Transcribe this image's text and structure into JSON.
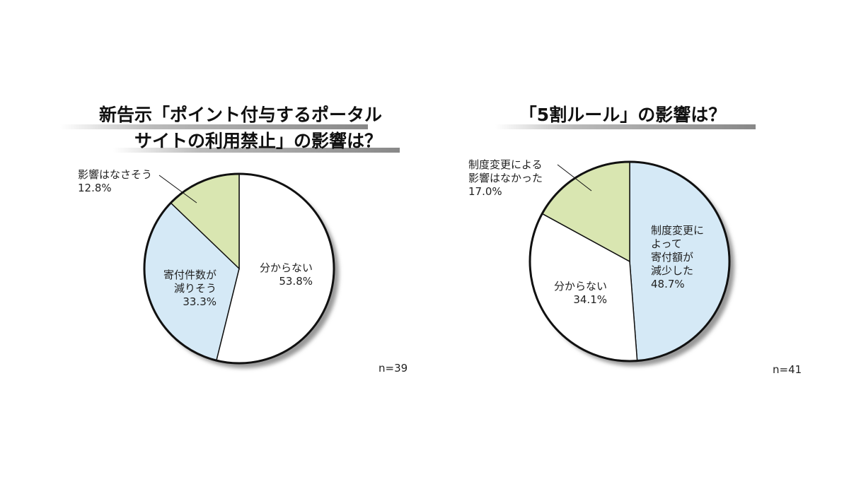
{
  "chart_data": [
    {
      "type": "pie",
      "title": "新告示「ポイント付与するポータル\nサイトの利用禁止」の影響は？",
      "categories": [
        "分からない",
        "寄付件数が\n減りそう",
        "影響はなさそう"
      ],
      "values": [
        53.8,
        33.3,
        12.8
      ],
      "value_labels": [
        "53.8%",
        "33.3%",
        "12.8%"
      ],
      "colors": [
        "#ffffff",
        "#d5e9f6",
        "#d9e6b1"
      ],
      "annotation": "n=39"
    },
    {
      "type": "pie",
      "title": "「5割ルール」の影響は？",
      "categories": [
        "制度変更に\nよって\n寄付額が\n減少した",
        "分からない",
        "制度変更による\n影響はなかった"
      ],
      "values": [
        48.7,
        34.1,
        17.0
      ],
      "value_labels": [
        "48.7%",
        "34.1%",
        "17.0%"
      ],
      "colors": [
        "#d5e9f6",
        "#ffffff",
        "#d9e6b1"
      ],
      "annotation": "n=41"
    }
  ]
}
